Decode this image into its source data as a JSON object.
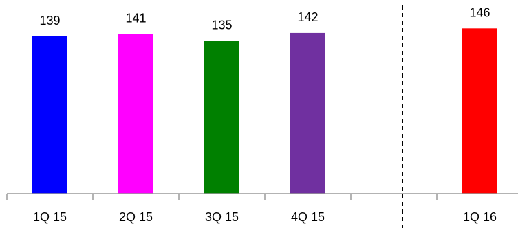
{
  "chart_data": {
    "type": "bar",
    "categories": [
      "1Q 15",
      "2Q 15",
      "3Q 15",
      "4Q 15",
      "",
      "1Q 16"
    ],
    "values": [
      139,
      141,
      135,
      142,
      null,
      146
    ],
    "colors": [
      "#0000ff",
      "#ff00ff",
      "#008000",
      "#7030a0",
      null,
      "#ff0000"
    ],
    "data_labels": [
      "139",
      "141",
      "135",
      "142",
      "",
      "146"
    ],
    "title": "",
    "xlabel": "",
    "ylabel": "",
    "ylim": [
      0,
      165
    ],
    "grid": false,
    "legend": "none",
    "divider": {
      "between_categories": [
        4,
        5
      ],
      "style": "dashed",
      "color": "#000000"
    }
  }
}
